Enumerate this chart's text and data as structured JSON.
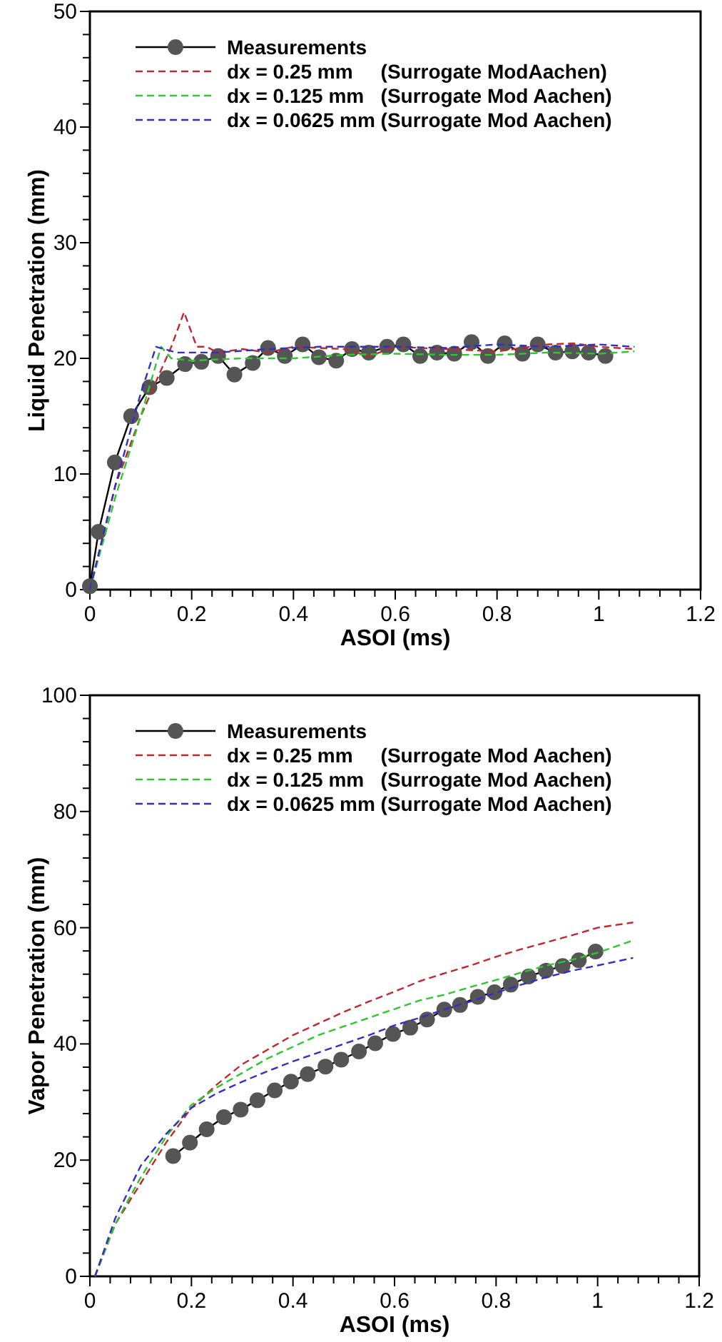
{
  "chart_data": [
    {
      "type": "line",
      "xlabel": "ASOI (ms)",
      "ylabel": "Liquid Penetration (mm)",
      "xlim": [
        0,
        1.2
      ],
      "ylim": [
        0,
        50
      ],
      "legend": "top left",
      "xticks": [
        0,
        {
          "value": 0.04,
          "label": null
        },
        {
          "value": 0.08,
          "label": null
        },
        {
          "value": 0.12,
          "label": null
        },
        {
          "value": 0.16,
          "label": null
        },
        0.2,
        {
          "value": 0.24,
          "label": null
        },
        {
          "value": 0.28,
          "label": null
        },
        {
          "value": 0.32,
          "label": null
        },
        {
          "value": 0.36,
          "label": null
        },
        0.4,
        {
          "value": 0.44,
          "label": null
        },
        {
          "value": 0.48,
          "label": null
        },
        {
          "value": 0.52,
          "label": null
        },
        {
          "value": 0.56,
          "label": null
        },
        0.6,
        {
          "value": 0.64,
          "label": null
        },
        {
          "value": 0.68,
          "label": null
        },
        {
          "value": 0.72,
          "label": null
        },
        {
          "value": 0.76,
          "label": null
        },
        0.8,
        {
          "value": 0.84,
          "label": null
        },
        {
          "value": 0.88,
          "label": null
        },
        {
          "value": 0.92,
          "label": null
        },
        {
          "value": 0.96,
          "label": null
        },
        1,
        {
          "value": 1.04,
          "label": null
        },
        {
          "value": 1.08,
          "label": null
        },
        {
          "value": 1.12,
          "label": null
        },
        {
          "value": 1.16,
          "label": null
        },
        1.2
      ],
      "yticks": [
        0,
        {
          "value": 2,
          "label": null
        },
        {
          "value": 4,
          "label": null
        },
        {
          "value": 6,
          "label": null
        },
        {
          "value": 8,
          "label": null
        },
        10,
        {
          "value": 12,
          "label": null
        },
        {
          "value": 14,
          "label": null
        },
        {
          "value": 16,
          "label": null
        },
        {
          "value": 18,
          "label": null
        },
        20,
        {
          "value": 22,
          "label": null
        },
        {
          "value": 24,
          "label": null
        },
        {
          "value": 26,
          "label": null
        },
        {
          "value": 28,
          "label": null
        },
        30,
        {
          "value": 32,
          "label": null
        },
        {
          "value": 34,
          "label": null
        },
        {
          "value": 36,
          "label": null
        },
        {
          "value": 38,
          "label": null
        },
        40,
        {
          "value": 42,
          "label": null
        },
        {
          "value": 44,
          "label": null
        },
        {
          "value": 46,
          "label": null
        },
        {
          "value": 48,
          "label": null
        },
        50
      ],
      "series": [
        {
          "name": "Measurements",
          "color": "#555555",
          "marker": "circle",
          "line_style": "solid",
          "x": [
            0,
            0.017,
            0.049,
            0.081,
            0.117,
            0.151,
            0.187,
            0.219,
            0.252,
            0.284,
            0.32,
            0.35,
            0.383,
            0.418,
            0.45,
            0.484,
            0.515,
            0.548,
            0.584,
            0.616,
            0.649,
            0.682,
            0.716,
            0.75,
            0.782,
            0.815,
            0.85,
            0.88,
            0.915,
            0.948,
            0.98,
            1.013
          ],
          "values": [
            0.3,
            5,
            11,
            15,
            17.5,
            18.3,
            19.5,
            19.7,
            20.2,
            18.6,
            19.6,
            20.9,
            20.2,
            21.2,
            20.1,
            19.8,
            20.8,
            20.5,
            21,
            21.2,
            20.2,
            20.5,
            20.4,
            21.4,
            20.2,
            21.3,
            20.4,
            21.2,
            20.5,
            20.6,
            20.5,
            20.2
          ]
        },
        {
          "name": "dx = 0.25 mm     (Surrogate ModAachen)",
          "color": "#c0282d",
          "marker": "none",
          "line_style": "dashed",
          "x": [
            0,
            0.05,
            0.1,
            0.13,
            0.16,
            0.185,
            0.21,
            0.23,
            0.25,
            0.3,
            0.35,
            0.4,
            0.5,
            0.55,
            0.6,
            0.7,
            0.8,
            0.9,
            0.95,
            1.0,
            1.07
          ],
          "values": [
            0,
            9,
            15,
            18,
            21,
            24,
            21,
            21,
            20.5,
            20.8,
            20.5,
            21,
            20.8,
            20.2,
            21,
            20.8,
            20.6,
            21.2,
            21.3,
            21,
            20.8
          ]
        },
        {
          "name": "dx = 0.125 mm   (Surrogate Mod Aachen)",
          "color": "#2ec82e",
          "marker": "none",
          "line_style": "dashed",
          "x": [
            0,
            0.05,
            0.1,
            0.14,
            0.16,
            0.2,
            0.3,
            0.4,
            0.5,
            0.6,
            0.7,
            0.8,
            0.9,
            1.0,
            1.07
          ],
          "values": [
            0,
            8,
            15,
            21,
            20,
            19.8,
            20,
            20,
            20.3,
            20.4,
            20.3,
            20.3,
            20.5,
            20.4,
            20.6
          ]
        },
        {
          "name": "dx = 0.0625 mm (Surrogate Mod Aachen)",
          "color": "#3030c8",
          "marker": "none",
          "line_style": "dashed",
          "x": [
            0,
            0.05,
            0.1,
            0.13,
            0.17,
            0.25,
            0.35,
            0.45,
            0.6,
            0.7,
            0.8,
            0.9,
            1.0,
            1.07
          ],
          "values": [
            0,
            9,
            17,
            21,
            20.5,
            20.5,
            20.8,
            21,
            21,
            20.9,
            21.2,
            21,
            21.2,
            21
          ]
        }
      ]
    },
    {
      "type": "line",
      "xlabel": "ASOI (ms)",
      "ylabel": "Vapor Penetration (mm)",
      "xlim": [
        0,
        1.2
      ],
      "ylim": [
        0,
        100
      ],
      "legend": "top left",
      "xticks": [
        0,
        {
          "value": 0.04,
          "label": null
        },
        {
          "value": 0.08,
          "label": null
        },
        {
          "value": 0.12,
          "label": null
        },
        {
          "value": 0.16,
          "label": null
        },
        0.2,
        {
          "value": 0.24,
          "label": null
        },
        {
          "value": 0.28,
          "label": null
        },
        {
          "value": 0.32,
          "label": null
        },
        {
          "value": 0.36,
          "label": null
        },
        0.4,
        {
          "value": 0.44,
          "label": null
        },
        {
          "value": 0.48,
          "label": null
        },
        {
          "value": 0.52,
          "label": null
        },
        {
          "value": 0.56,
          "label": null
        },
        0.6,
        {
          "value": 0.64,
          "label": null
        },
        {
          "value": 0.68,
          "label": null
        },
        {
          "value": 0.72,
          "label": null
        },
        {
          "value": 0.76,
          "label": null
        },
        0.8,
        {
          "value": 0.84,
          "label": null
        },
        {
          "value": 0.88,
          "label": null
        },
        {
          "value": 0.92,
          "label": null
        },
        {
          "value": 0.96,
          "label": null
        },
        1,
        {
          "value": 1.04,
          "label": null
        },
        {
          "value": 1.08,
          "label": null
        },
        {
          "value": 1.12,
          "label": null
        },
        {
          "value": 1.16,
          "label": null
        },
        1.2
      ],
      "yticks": [
        0,
        {
          "value": 4,
          "label": null
        },
        {
          "value": 8,
          "label": null
        },
        {
          "value": 12,
          "label": null
        },
        {
          "value": 16,
          "label": null
        },
        20,
        {
          "value": 24,
          "label": null
        },
        {
          "value": 28,
          "label": null
        },
        {
          "value": 32,
          "label": null
        },
        {
          "value": 36,
          "label": null
        },
        40,
        {
          "value": 44,
          "label": null
        },
        {
          "value": 48,
          "label": null
        },
        {
          "value": 52,
          "label": null
        },
        {
          "value": 56,
          "label": null
        },
        60,
        {
          "value": 64,
          "label": null
        },
        {
          "value": 68,
          "label": null
        },
        {
          "value": 72,
          "label": null
        },
        {
          "value": 76,
          "label": null
        },
        80,
        {
          "value": 84,
          "label": null
        },
        {
          "value": 88,
          "label": null
        },
        {
          "value": 92,
          "label": null
        },
        {
          "value": 96,
          "label": null
        },
        100
      ],
      "series": [
        {
          "name": "Measurements",
          "color": "#555555",
          "marker": "circle",
          "line_style": "solid",
          "x": [
            0.164,
            0.197,
            0.23,
            0.264,
            0.297,
            0.33,
            0.364,
            0.396,
            0.429,
            0.464,
            0.495,
            0.53,
            0.562,
            0.597,
            0.631,
            0.664,
            0.698,
            0.729,
            0.764,
            0.797,
            0.829,
            0.864,
            0.898,
            0.931,
            0.963,
            0.996
          ],
          "values": [
            20.7,
            23,
            25.3,
            27.4,
            28.7,
            30.3,
            32,
            33.5,
            34.8,
            36.1,
            37.3,
            38.7,
            40.1,
            41.7,
            42.8,
            44.2,
            45.9,
            46.7,
            48.1,
            48.9,
            50.2,
            51.6,
            52.6,
            53.4,
            54.4,
            55.9
          ]
        },
        {
          "name": "dx = 0.25 mm     (Surrogate Mod Aachen)",
          "color": "#c0282d",
          "marker": "none",
          "line_style": "dashed",
          "x": [
            0.01,
            0.05,
            0.1,
            0.15,
            0.2,
            0.25,
            0.3,
            0.35,
            0.4,
            0.45,
            0.5,
            0.55,
            0.6,
            0.65,
            0.7,
            0.75,
            0.8,
            0.85,
            0.9,
            0.95,
            1.0,
            1.07
          ],
          "values": [
            0,
            9,
            16,
            23,
            29,
            33,
            36.5,
            39,
            41.5,
            43.5,
            45.5,
            47.3,
            49,
            50.8,
            52.2,
            53.5,
            55,
            56.3,
            57.5,
            58.7,
            60,
            60.9
          ]
        },
        {
          "name": "dx = 0.125 mm   (Surrogate Mod Aachen)",
          "color": "#2ec82e",
          "marker": "none",
          "line_style": "dashed",
          "x": [
            0.01,
            0.05,
            0.1,
            0.15,
            0.2,
            0.25,
            0.3,
            0.35,
            0.4,
            0.45,
            0.5,
            0.55,
            0.6,
            0.65,
            0.7,
            0.75,
            0.8,
            0.85,
            0.9,
            0.95,
            1.0,
            1.07
          ],
          "values": [
            0,
            9,
            17,
            24,
            29.5,
            32.5,
            35,
            37.5,
            39.5,
            41.5,
            43,
            44.5,
            46,
            47.5,
            48.5,
            49.8,
            51,
            52.3,
            53.5,
            54.5,
            55.7,
            57.8
          ]
        },
        {
          "name": "dx = 0.0625 mm (Surrogate Mod Aachen)",
          "color": "#3030c8",
          "marker": "none",
          "line_style": "dashed",
          "x": [
            0.01,
            0.05,
            0.1,
            0.15,
            0.2,
            0.25,
            0.3,
            0.35,
            0.4,
            0.45,
            0.5,
            0.55,
            0.6,
            0.65,
            0.7,
            0.75,
            0.8,
            0.85,
            0.9,
            0.95,
            1.0,
            1.07
          ],
          "values": [
            0,
            10,
            19,
            24.5,
            29,
            31.5,
            33.5,
            35.3,
            37,
            38.5,
            40,
            41.5,
            43.2,
            44.5,
            46,
            47.3,
            48.8,
            50.2,
            51.5,
            52.6,
            53.5,
            54.8
          ]
        }
      ]
    }
  ]
}
